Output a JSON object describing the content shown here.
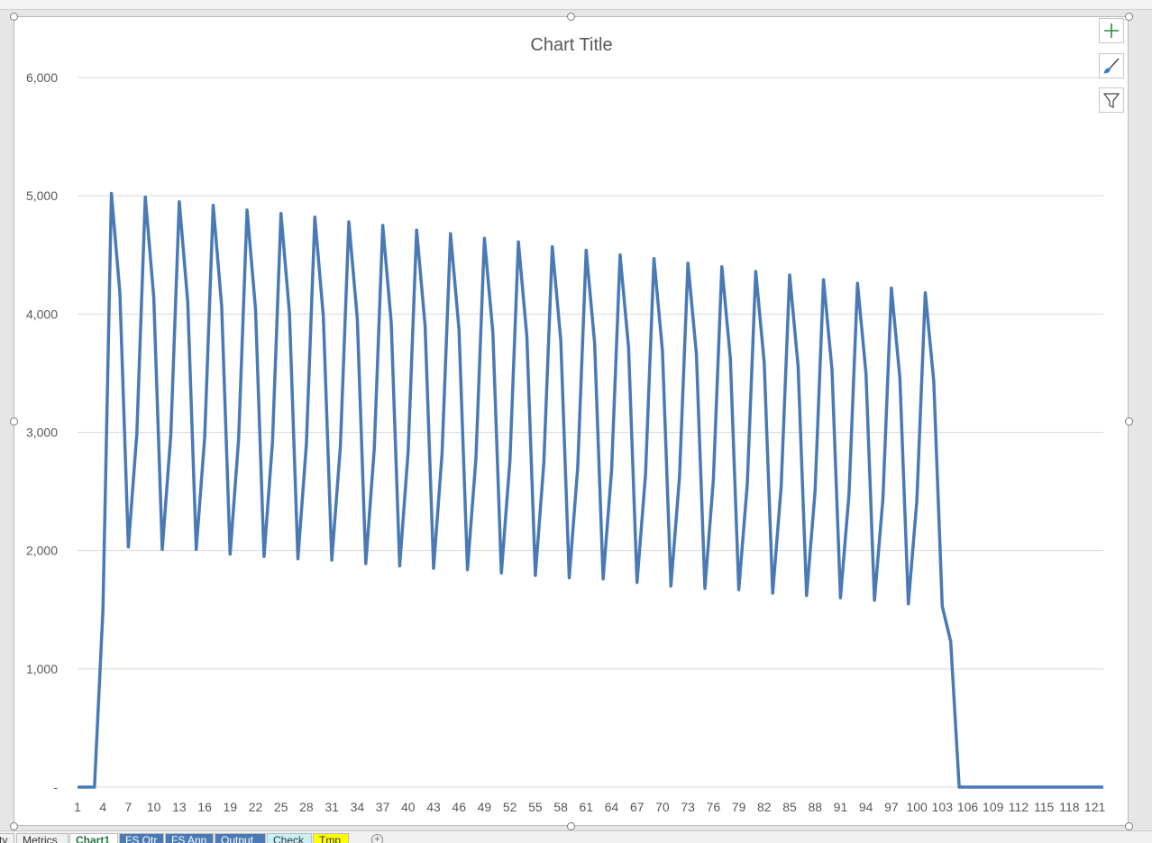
{
  "chart_data": {
    "type": "line",
    "title": "Chart Title",
    "ylim": [
      0,
      6000
    ],
    "y_ticks": [
      "-",
      "1,000",
      "2,000",
      "3,000",
      "4,000",
      "5,000",
      "6,000"
    ],
    "x_ticks": [
      "1",
      "4",
      "7",
      "10",
      "13",
      "16",
      "19",
      "22",
      "25",
      "28",
      "31",
      "34",
      "37",
      "40",
      "43",
      "46",
      "49",
      "52",
      "55",
      "58",
      "61",
      "64",
      "67",
      "70",
      "73",
      "76",
      "79",
      "82",
      "85",
      "88",
      "91",
      "94",
      "97",
      "100",
      "103",
      "106",
      "109",
      "112",
      "115",
      "118",
      "121"
    ],
    "grid": true,
    "series": [
      {
        "color": "#4a7ab5",
        "x": [
          1,
          2,
          3,
          4,
          5,
          6,
          7,
          8,
          9,
          10,
          11,
          12,
          13,
          14,
          15,
          16,
          17,
          18,
          19,
          20,
          21,
          22,
          23,
          24,
          25,
          26,
          27,
          28,
          29,
          30,
          31,
          32,
          33,
          34,
          35,
          36,
          37,
          38,
          39,
          40,
          41,
          42,
          43,
          44,
          45,
          46,
          47,
          48,
          49,
          50,
          51,
          52,
          53,
          54,
          55,
          56,
          57,
          58,
          59,
          60,
          61,
          62,
          63,
          64,
          65,
          66,
          67,
          68,
          69,
          70,
          71,
          72,
          73,
          74,
          75,
          76,
          77,
          78,
          79,
          80,
          81,
          82,
          83,
          84,
          85,
          86,
          87,
          88,
          89,
          90,
          91,
          92,
          93,
          94,
          95,
          96,
          97,
          98,
          99,
          100,
          101,
          102,
          103,
          104,
          105,
          106,
          107,
          108,
          109,
          110,
          111,
          112,
          113,
          114,
          115,
          116,
          117,
          118,
          119,
          120,
          121,
          122
        ],
        "values": [
          0,
          0,
          0,
          1500,
          5020,
          4180,
          2030,
          2990,
          4990,
          4140,
          2010,
          2980,
          4950,
          4100,
          2010,
          2960,
          4920,
          4070,
          1970,
          2940,
          4880,
          4040,
          1950,
          2920,
          4850,
          4010,
          1930,
          2900,
          4820,
          3980,
          1920,
          2880,
          4780,
          3960,
          1890,
          2860,
          4750,
          3930,
          1870,
          2840,
          4710,
          3900,
          1850,
          2820,
          4680,
          3870,
          1840,
          2780,
          4640,
          3840,
          1810,
          2760,
          4610,
          3810,
          1790,
          2740,
          4570,
          3780,
          1770,
          2700,
          4540,
          3750,
          1760,
          2680,
          4500,
          3720,
          1730,
          2640,
          4470,
          3690,
          1700,
          2620,
          4430,
          3660,
          1680,
          2600,
          4400,
          3630,
          1670,
          2560,
          4360,
          3590,
          1640,
          2540,
          4330,
          3560,
          1620,
          2500,
          4290,
          3530,
          1600,
          2480,
          4260,
          3500,
          1580,
          2440,
          4220,
          3460,
          1550,
          2420,
          4180,
          3430,
          1530,
          1230,
          0,
          0,
          0,
          0,
          0,
          0,
          0,
          0,
          0,
          0,
          0,
          0,
          0,
          0,
          0,
          0,
          0,
          0
        ]
      }
    ]
  },
  "chart_buttons": {
    "elements": "plus-icon",
    "styles": "brush-icon",
    "filters": "filter-icon"
  },
  "sheet_tabs": [
    {
      "label": "ty",
      "bg": "#f0f0f0",
      "fg": "#333333",
      "active": false
    },
    {
      "label": "Metrics",
      "bg": "#f0f0f0",
      "fg": "#333333",
      "active": false
    },
    {
      "label": "Chart1",
      "bg": "#ffffff",
      "fg": "#217346",
      "active": true
    },
    {
      "label": "FS Qtr",
      "bg": "#4a7ab5",
      "fg": "#ffffff",
      "active": false
    },
    {
      "label": "FS Ann",
      "bg": "#4a7ab5",
      "fg": "#ffffff",
      "active": false
    },
    {
      "label": "Output",
      "bg": "#4a7ab5",
      "fg": "#ffffff",
      "active": false
    },
    {
      "label": "Check",
      "bg": "#c9f1f5",
      "fg": "#333333",
      "active": false
    },
    {
      "label": "Tmp",
      "bg": "#ffff00",
      "fg": "#333333",
      "active": false
    }
  ]
}
